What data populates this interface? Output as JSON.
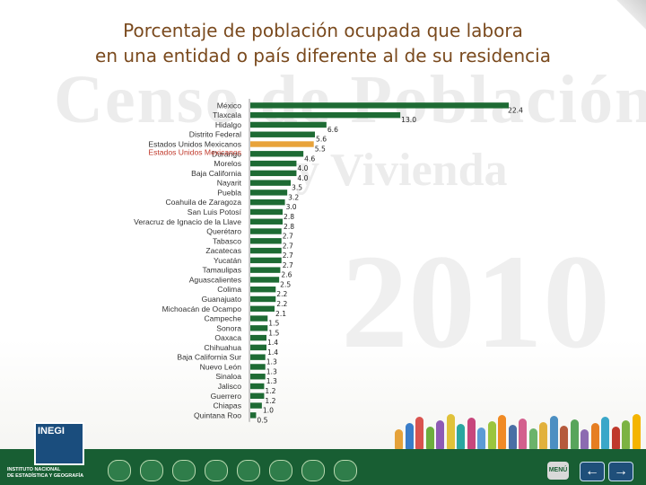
{
  "title_line1": "Porcentaje de población ocupada que labora",
  "title_line2": "en una entidad o país diferente al de su residencia",
  "watermark": {
    "line1": "Censo de Población",
    "line2": "y Vivienda",
    "line3": "2010"
  },
  "footer": {
    "institution_line1": "INSTITUTO NACIONAL",
    "institution_line2": "DE ESTADÍSTICA Y GEOGRAFÍA",
    "logo_text": "INEGI",
    "menu_label": "MENÚ",
    "prev_icon": "arrow-left-icon",
    "next_icon": "arrow-right-icon"
  },
  "colors": {
    "bar": "#1e6b34",
    "highlight_bar": "#e8a33a",
    "title": "#7a4a1e",
    "footer": "#185e33"
  },
  "chart_data": {
    "type": "bar",
    "orientation": "horizontal",
    "title": "Porcentaje de población ocupada que labora en una entidad o país diferente al de su residencia",
    "categories": [
      "México",
      "Tlaxcala",
      "Hidalgo",
      "Distrito Federal",
      "Estados Unidos Mexicanos",
      "Durango",
      "Morelos",
      "Baja California",
      "Nayarit",
      "Puebla",
      "Coahuila de Zaragoza",
      "San Luis Potosí",
      "Veracruz de Ignacio de la Llave",
      "Querétaro",
      "Tabasco",
      "Zacatecas",
      "Yucatán",
      "Tamaulipas",
      "Aguascalientes",
      "Colima",
      "Guanajuato",
      "Michoacán de Ocampo",
      "Campeche",
      "Sonora",
      "Oaxaca",
      "Chihuahua",
      "Baja California Sur",
      "Nuevo León",
      "Sinaloa",
      "Jalisco",
      "Guerrero",
      "Chiapas",
      "Quintana Roo"
    ],
    "values": [
      22.4,
      13.0,
      6.6,
      5.6,
      5.5,
      4.6,
      4.0,
      4.0,
      3.5,
      3.2,
      3.0,
      2.8,
      2.8,
      2.7,
      2.7,
      2.7,
      2.7,
      2.6,
      2.5,
      2.2,
      2.2,
      2.1,
      1.5,
      1.5,
      1.4,
      1.4,
      1.3,
      1.3,
      1.3,
      1.2,
      1.2,
      1.0,
      0.5
    ],
    "value_labels": [
      "22.4",
      "13.0",
      "6.6",
      "5.6",
      "5.5",
      "4.6",
      "4.0",
      "4.0",
      "3.5",
      "3.2",
      "3.0",
      "2.8",
      "2.8",
      "2.7",
      "2.7",
      "2.7",
      "2.7",
      "2.6",
      "2.5",
      "2.2",
      "2.2",
      "2.1",
      "1.5",
      "1.5",
      "1.4",
      "1.4",
      "1.3",
      "1.3",
      "1.3",
      "1.2",
      "1.2",
      "1.0",
      "0.5"
    ],
    "highlight_category": "Estados Unidos Mexicanos",
    "highlight_label": "Estados Unidos Mexicanos",
    "xlim": [
      0,
      22.4
    ],
    "grid": false,
    "legend": "none"
  }
}
